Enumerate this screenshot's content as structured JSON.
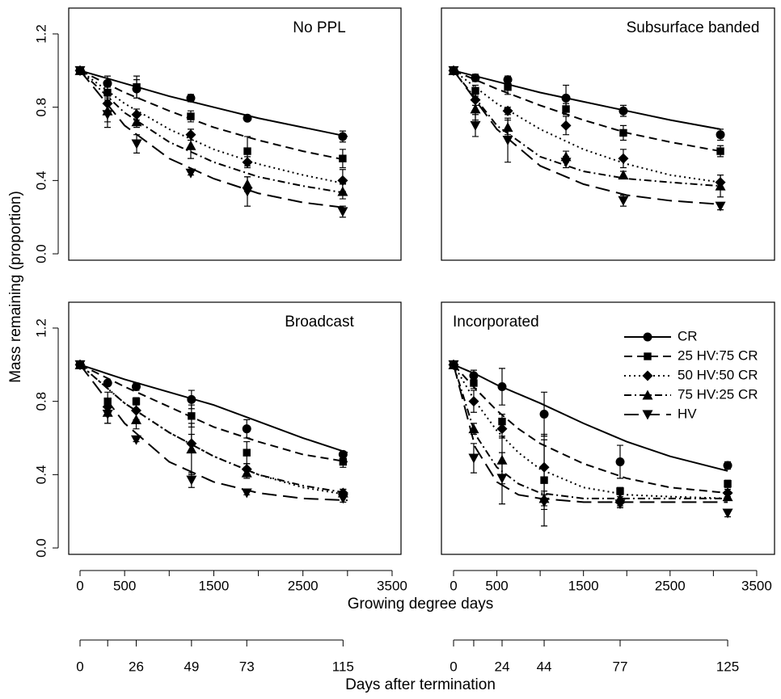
{
  "chart_data": {
    "type": "scatter",
    "y_label": "Mass remaining (proportion)",
    "x_label": "Growing degree days",
    "days_label": "Days after termination",
    "ylim": [
      -0.035,
      1.341
    ],
    "yticks": [
      {
        "value": 0,
        "label": "0.0"
      },
      0.4,
      0.8,
      1.2
    ],
    "series": [
      {
        "name": "CR",
        "marker": "circle",
        "dash": "solid",
        "color": "#000000"
      },
      {
        "name": "25 HV:75 CR",
        "marker": "square",
        "dash": "dashed",
        "color": "#000000"
      },
      {
        "name": "50 HV:50 CR",
        "marker": "diamond",
        "dash": "dotted",
        "color": "#000000"
      },
      {
        "name": "75 HV:25 CR",
        "marker": "triangle-up",
        "dash": "dashdot",
        "color": "#000000"
      },
      {
        "name": "HV",
        "marker": "triangle-down",
        "dash": "longdash",
        "color": "#000000"
      }
    ],
    "panels": [
      {
        "title": "No PPL",
        "xlim": [
          -127,
          3600
        ],
        "x": [
          0,
          308,
          635,
          1242,
          1877,
          2946
        ],
        "fit_x": [
          0,
          500,
          1000,
          1500,
          2000,
          2500,
          3000
        ],
        "series": [
          {
            "values": [
              1.0,
              0.93,
              0.9,
              0.85,
              0.74,
              0.64
            ],
            "errors": [
              0.01,
              0.04,
              0.05,
              0.02,
              0.01,
              0.03
            ],
            "fit": [
              1,
              0.93,
              0.86,
              0.8,
              0.74,
              0.69,
              0.64
            ]
          },
          {
            "values": [
              1.0,
              0.88,
              0.91,
              0.75,
              0.56,
              0.52
            ],
            "errors": [
              0.01,
              0.03,
              0.06,
              0.03,
              0.08,
              0.05
            ],
            "fit": [
              1,
              0.88,
              0.78,
              0.69,
              0.62,
              0.56,
              0.51
            ]
          },
          {
            "values": [
              1.0,
              0.82,
              0.76,
              0.65,
              0.5,
              0.4
            ],
            "errors": [
              0.01,
              0.04,
              0.03,
              0.03,
              0.03,
              0.06
            ],
            "fit": [
              1,
              0.82,
              0.68,
              0.57,
              0.49,
              0.43,
              0.38
            ]
          },
          {
            "values": [
              1.0,
              0.78,
              0.72,
              0.59,
              0.38,
              0.34
            ],
            "errors": [
              0.01,
              0.06,
              0.03,
              0.07,
              0.04,
              0.04
            ],
            "fit": [
              1,
              0.77,
              0.61,
              0.5,
              0.42,
              0.37,
              0.33
            ]
          },
          {
            "values": [
              1.0,
              0.76,
              0.6,
              0.44,
              0.34,
              0.23
            ],
            "errors": [
              0.01,
              0.07,
              0.05,
              0.01,
              0.08,
              0.03
            ],
            "fit": [
              1,
              0.7,
              0.52,
              0.41,
              0.33,
              0.28,
              0.25
            ]
          }
        ]
      },
      {
        "title": "Subsurface banded",
        "xlim": [
          -140,
          3706
        ],
        "x": [
          0,
          252,
          626,
          1298,
          1960,
          3081
        ],
        "fit_x": [
          0,
          500,
          1000,
          1500,
          2000,
          2500,
          3081
        ],
        "series": [
          {
            "values": [
              1.0,
              0.96,
              0.95,
              0.85,
              0.78,
              0.65
            ],
            "errors": [
              0.01,
              0.02,
              0.02,
              0.07,
              0.03,
              0.03
            ],
            "fit": [
              1,
              0.94,
              0.88,
              0.83,
              0.78,
              0.73,
              0.68
            ]
          },
          {
            "values": [
              1.0,
              0.89,
              0.91,
              0.79,
              0.66,
              0.56
            ],
            "errors": [
              0.01,
              0.03,
              0.04,
              0.03,
              0.04,
              0.03
            ],
            "fit": [
              1,
              0.9,
              0.81,
              0.73,
              0.66,
              0.61,
              0.56
            ]
          },
          {
            "values": [
              1.0,
              0.84,
              0.78,
              0.7,
              0.52,
              0.39
            ],
            "errors": [
              0.01,
              0.03,
              0.02,
              0.05,
              0.05,
              0.04
            ],
            "fit": [
              1,
              0.82,
              0.68,
              0.57,
              0.49,
              0.43,
              0.39
            ]
          },
          {
            "values": [
              1.0,
              0.79,
              0.69,
              0.53,
              0.43,
              0.37
            ],
            "errors": [
              0.01,
              0.06,
              0.04,
              0.03,
              0.02,
              0.06
            ],
            "fit": [
              1,
              0.7,
              0.53,
              0.45,
              0.41,
              0.39,
              0.37
            ]
          },
          {
            "values": [
              1.0,
              0.7,
              0.62,
              0.5,
              0.29,
              0.26
            ],
            "errors": [
              0.01,
              0.06,
              0.12,
              0.03,
              0.03,
              0.02
            ],
            "fit": [
              1,
              0.68,
              0.48,
              0.38,
              0.32,
              0.29,
              0.27
            ]
          }
        ]
      },
      {
        "title": "Broadcast",
        "xlim": [
          -127,
          3600
        ],
        "xticks": [
          0,
          500,
          1500,
          2500,
          3500
        ],
        "xminor_ticks": [
          1000,
          2000,
          3000
        ],
        "x": [
          0,
          310,
          630,
          1250,
          1870,
          2950
        ],
        "fit_x": [
          0,
          500,
          1000,
          1500,
          2000,
          2500,
          3000
        ],
        "series": [
          {
            "values": [
              1.0,
              0.9,
              0.88,
              0.81,
              0.65,
              0.51
            ],
            "errors": [
              0.01,
              0.01,
              0.02,
              0.05,
              0.05,
              0.01
            ],
            "fit": [
              1,
              0.92,
              0.85,
              0.78,
              0.69,
              0.6,
              0.52
            ]
          },
          {
            "values": [
              1.0,
              0.8,
              0.8,
              0.72,
              0.52,
              0.47
            ],
            "errors": [
              0.01,
              0.05,
              0.02,
              0.06,
              0.06,
              0.03
            ],
            "fit": [
              1,
              0.88,
              0.77,
              0.66,
              0.58,
              0.51,
              0.47
            ]
          },
          {
            "values": [
              1.0,
              0.77,
              0.75,
              0.57,
              0.43,
              0.3
            ],
            "errors": [
              0.01,
              0.04,
              0.05,
              0.05,
              0.03,
              0.02
            ],
            "fit": [
              1,
              0.79,
              0.63,
              0.5,
              0.4,
              0.33,
              0.29
            ]
          },
          {
            "values": [
              1.0,
              0.74,
              0.7,
              0.54,
              0.41,
              0.3
            ],
            "errors": [
              0.01,
              0.06,
              0.05,
              0.14,
              0.03,
              0.02
            ],
            "fit": [
              1,
              0.79,
              0.63,
              0.5,
              0.4,
              0.34,
              0.3
            ]
          },
          {
            "values": [
              1.0,
              0.73,
              0.59,
              0.37,
              0.3,
              0.27
            ],
            "errors": [
              0.01,
              0.05,
              0.01,
              0.04,
              0.01,
              0.02
            ],
            "fit": [
              1,
              0.68,
              0.47,
              0.36,
              0.3,
              0.27,
              0.26
            ]
          }
        ]
      },
      {
        "title": "Incorporated",
        "xlim": [
          -140,
          3706
        ],
        "legend": "topright",
        "xticks": [
          0,
          500,
          1500,
          2500,
          3500
        ],
        "xminor_ticks": [
          1000,
          2000,
          3000
        ],
        "x": [
          0,
          233,
          560,
          1046,
          1923,
          3165
        ],
        "fit_x": [
          0,
          250,
          500,
          750,
          1000,
          1500,
          2000,
          2500,
          3165
        ],
        "series": [
          {
            "values": [
              1.0,
              0.94,
              0.88,
              0.73,
              0.47,
              0.45
            ],
            "errors": [
              0.01,
              0.03,
              0.1,
              0.12,
              0.09,
              0.02
            ],
            "fit": [
              1,
              0.95,
              0.89,
              0.84,
              0.79,
              0.68,
              0.58,
              0.5,
              0.42
            ]
          },
          {
            "values": [
              1.0,
              0.9,
              0.69,
              0.37,
              0.31,
              0.35
            ],
            "errors": [
              0.01,
              0.03,
              0.04,
              0.25,
              0.02,
              0.02
            ],
            "fit": [
              1,
              0.87,
              0.75,
              0.65,
              0.57,
              0.46,
              0.38,
              0.33,
              0.3
            ]
          },
          {
            "values": [
              1.0,
              0.8,
              0.65,
              0.44,
              0.25,
              0.3
            ],
            "errors": [
              0.01,
              0.06,
              0.05,
              0.15,
              0.03,
              0.02
            ],
            "fit": [
              1,
              0.8,
              0.64,
              0.52,
              0.43,
              0.33,
              0.29,
              0.28,
              0.27
            ]
          },
          {
            "values": [
              1.0,
              0.65,
              0.48,
              0.27,
              0.27,
              0.28
            ],
            "errors": [
              0.01,
              0.03,
              0.13,
              0.04,
              0.04,
              0.02
            ],
            "fit": [
              1,
              0.62,
              0.44,
              0.35,
              0.3,
              0.27,
              0.27,
              0.27,
              0.27
            ]
          },
          {
            "values": [
              1.0,
              0.49,
              0.38,
              0.25,
              0.24,
              0.19
            ],
            "errors": [
              0.01,
              0.08,
              0.14,
              0.04,
              0.02,
              0.02
            ],
            "fit": [
              1,
              0.55,
              0.36,
              0.29,
              0.27,
              0.25,
              0.25,
              0.25,
              0.25
            ]
          }
        ]
      }
    ],
    "day_axes": [
      {
        "gdd": [
          0,
          310,
          630,
          1250,
          1870,
          2950
        ],
        "days": [
          0,
          null,
          26,
          49,
          73,
          115
        ]
      },
      {
        "gdd": [
          0,
          233,
          560,
          1046,
          1923,
          3165
        ],
        "days": [
          0,
          null,
          24,
          44,
          77,
          125
        ]
      }
    ]
  }
}
